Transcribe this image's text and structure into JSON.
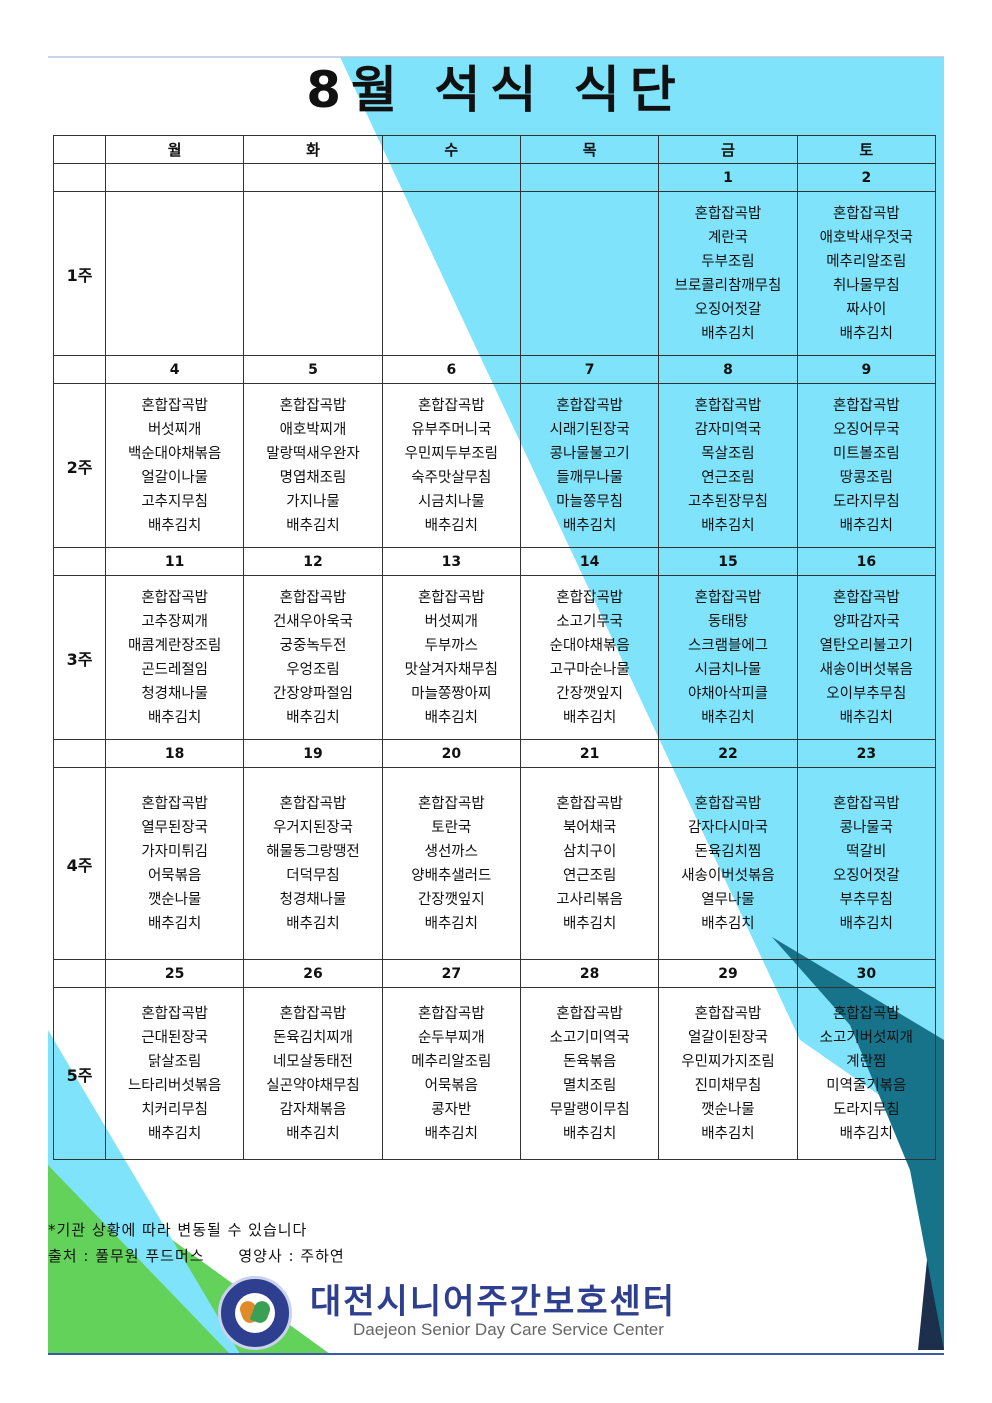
{
  "title": "8월 석식 식단",
  "days": [
    "월",
    "화",
    "수",
    "목",
    "금",
    "토"
  ],
  "weeks": [
    {
      "label": "1주",
      "dates": [
        "",
        "",
        "",
        "",
        "1",
        "2"
      ],
      "menus": [
        [],
        [],
        [],
        [],
        [
          "혼합잡곡밥",
          "계란국",
          "두부조림",
          "브로콜리참깨무침",
          "오징어젓갈",
          "배추김치"
        ],
        [
          "혼합잡곡밥",
          "애호박새우젓국",
          "메추리알조림",
          "취나물무침",
          "짜사이",
          "배추김치"
        ]
      ]
    },
    {
      "label": "2주",
      "dates": [
        "4",
        "5",
        "6",
        "7",
        "8",
        "9"
      ],
      "menus": [
        [
          "혼합잡곡밥",
          "버섯찌개",
          "백순대야채볶음",
          "얼갈이나물",
          "고추지무침",
          "배추김치"
        ],
        [
          "혼합잡곡밥",
          "애호박찌개",
          "말랑떡새우완자",
          "명엽채조림",
          "가지나물",
          "배추김치"
        ],
        [
          "혼합잡곡밥",
          "유부주머니국",
          "우민찌두부조림",
          "숙주맛살무침",
          "시금치나물",
          "배추김치"
        ],
        [
          "혼합잡곡밥",
          "시래기된장국",
          "콩나물불고기",
          "들깨무나물",
          "마늘쫑무침",
          "배추김치"
        ],
        [
          "혼합잡곡밥",
          "감자미역국",
          "목살조림",
          "연근조림",
          "고추된장무침",
          "배추김치"
        ],
        [
          "혼합잡곡밥",
          "오징어무국",
          "미트볼조림",
          "땅콩조림",
          "도라지무침",
          "배추김치"
        ]
      ]
    },
    {
      "label": "3주",
      "dates": [
        "11",
        "12",
        "13",
        "14",
        "15",
        "16"
      ],
      "menus": [
        [
          "혼합잡곡밥",
          "고추장찌개",
          "매콤계란장조림",
          "곤드레절임",
          "청경채나물",
          "배추김치"
        ],
        [
          "혼합잡곡밥",
          "건새우아욱국",
          "궁중녹두전",
          "우엉조림",
          "간장양파절임",
          "배추김치"
        ],
        [
          "혼합잡곡밥",
          "버섯찌개",
          "두부까스",
          "맛살겨자채무침",
          "마늘쫑짱아찌",
          "배추김치"
        ],
        [
          "혼합잡곡밥",
          "소고기무국",
          "순대야채볶음",
          "고구마순나물",
          "간장깻잎지",
          "배추김치"
        ],
        [
          "혼합잡곡밥",
          "동태탕",
          "스크램블에그",
          "시금치나물",
          "야채아삭피클",
          "배추김치"
        ],
        [
          "혼합잡곡밥",
          "양파감자국",
          "열탄오리불고기",
          "새송이버섯볶음",
          "오이부추무침",
          "배추김치"
        ]
      ]
    },
    {
      "label": "4주",
      "dates": [
        "18",
        "19",
        "20",
        "21",
        "22",
        "23"
      ],
      "menus": [
        [
          "혼합잡곡밥",
          "열무된장국",
          "가자미튀김",
          "어묵볶음",
          "깻순나물",
          "배추김치"
        ],
        [
          "혼합잡곡밥",
          "우거지된장국",
          "해물동그랑땡전",
          "더덕무침",
          "청경채나물",
          "배추김치"
        ],
        [
          "혼합잡곡밥",
          "토란국",
          "생선까스",
          "양배추샐러드",
          "간장깻잎지",
          "배추김치"
        ],
        [
          "혼합잡곡밥",
          "북어채국",
          "삼치구이",
          "연근조림",
          "고사리볶음",
          "배추김치"
        ],
        [
          "혼합잡곡밥",
          "감자다시마국",
          "돈육김치찜",
          "새송이버섯볶음",
          "열무나물",
          "배추김치"
        ],
        [
          "혼합잡곡밥",
          "콩나물국",
          "떡갈비",
          "오징어젓갈",
          "부추무침",
          "배추김치"
        ]
      ]
    },
    {
      "label": "5주",
      "dates": [
        "25",
        "26",
        "27",
        "28",
        "29",
        "30"
      ],
      "menus": [
        [
          "혼합잡곡밥",
          "근대된장국",
          "닭살조림",
          "느타리버섯볶음",
          "치커리무침",
          "배추김치"
        ],
        [
          "혼합잡곡밥",
          "돈육김치찌개",
          "네모살동태전",
          "실곤약야채무침",
          "감자채볶음",
          "배추김치"
        ],
        [
          "혼합잡곡밥",
          "순두부찌개",
          "메추리알조림",
          "어묵볶음",
          "콩자반",
          "배추김치"
        ],
        [
          "혼합잡곡밥",
          "소고기미역국",
          "돈육볶음",
          "멸치조림",
          "무말랭이무침",
          "배추김치"
        ],
        [
          "혼합잡곡밥",
          "얼갈이된장국",
          "우민찌가지조림",
          "진미채무침",
          "깻순나물",
          "배추김치"
        ],
        [
          "혼합잡곡밥",
          "소고기버섯찌개",
          "계란찜",
          "미역줄기볶음",
          "도라지무침",
          "배추김치"
        ]
      ]
    }
  ],
  "footer": {
    "note": "*기관 상황에 따라 변동될 수 있습니다",
    "source": "출처 : 풀무원 푸드머스",
    "dietitian": "영양사 : 주하연"
  },
  "logo": {
    "name": "대전시니어주간보호센터",
    "english": "Daejeon Senior Day Care Service Center"
  },
  "colors": {
    "cyan": "#7fe3fb",
    "green": "#63d25a",
    "navy": "#1c2f4b",
    "teal": "#16738a",
    "brand": "#2e3f8f"
  }
}
